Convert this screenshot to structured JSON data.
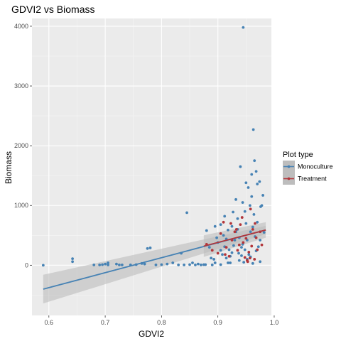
{
  "chart_data": {
    "type": "scatter",
    "title": "GDVI2 vs Biomass",
    "xlabel": "GDVI2",
    "ylabel": "Biomass",
    "xlim": [
      0.57,
      0.995
    ],
    "ylim": [
      -840,
      4130
    ],
    "x_ticks": [
      0.6,
      0.7,
      0.8,
      0.9,
      1.0
    ],
    "x_tick_labels": [
      "0.6",
      "0.7",
      "0.8",
      "0.9",
      "1.0"
    ],
    "y_ticks": [
      0,
      1000,
      2000,
      3000,
      4000
    ],
    "y_tick_labels": [
      "0",
      "1000",
      "2000",
      "3000",
      "4000"
    ],
    "grid": true,
    "background": "#ebebeb",
    "legend": {
      "title": "Plot type",
      "position": "right",
      "entries": [
        "Monoculture",
        "Treatment"
      ]
    },
    "series": [
      {
        "name": "Monoculture",
        "color": "#4682b4",
        "points": [
          [
            0.59,
            0
          ],
          [
            0.642,
            110
          ],
          [
            0.642,
            60
          ],
          [
            0.68,
            5
          ],
          [
            0.69,
            5
          ],
          [
            0.695,
            10
          ],
          [
            0.7,
            20
          ],
          [
            0.705,
            40
          ],
          [
            0.705,
            5
          ],
          [
            0.72,
            20
          ],
          [
            0.725,
            5
          ],
          [
            0.73,
            5
          ],
          [
            0.745,
            5
          ],
          [
            0.755,
            10
          ],
          [
            0.765,
            30
          ],
          [
            0.77,
            20
          ],
          [
            0.775,
            280
          ],
          [
            0.78,
            290
          ],
          [
            0.79,
            5
          ],
          [
            0.8,
            10
          ],
          [
            0.81,
            20
          ],
          [
            0.82,
            40
          ],
          [
            0.83,
            5
          ],
          [
            0.835,
            200
          ],
          [
            0.84,
            5
          ],
          [
            0.845,
            880
          ],
          [
            0.85,
            10
          ],
          [
            0.855,
            40
          ],
          [
            0.86,
            5
          ],
          [
            0.865,
            20
          ],
          [
            0.87,
            5
          ],
          [
            0.875,
            10
          ],
          [
            0.878,
            10
          ],
          [
            0.88,
            580
          ],
          [
            0.885,
            300
          ],
          [
            0.89,
            5
          ],
          [
            0.893,
            100
          ],
          [
            0.895,
            40
          ],
          [
            0.9,
            380
          ],
          [
            0.905,
            10
          ],
          [
            0.905,
            250
          ],
          [
            0.91,
            500
          ],
          [
            0.912,
            820
          ],
          [
            0.915,
            440
          ],
          [
            0.918,
            40
          ],
          [
            0.92,
            260
          ],
          [
            0.922,
            150
          ],
          [
            0.925,
            650
          ],
          [
            0.927,
            890
          ],
          [
            0.93,
            420
          ],
          [
            0.932,
            1100
          ],
          [
            0.935,
            600
          ],
          [
            0.937,
            200
          ],
          [
            0.938,
            80
          ],
          [
            0.94,
            1650
          ],
          [
            0.942,
            300
          ],
          [
            0.944,
            350
          ],
          [
            0.945,
            3980
          ],
          [
            0.946,
            50
          ],
          [
            0.948,
            900
          ],
          [
            0.95,
            700
          ],
          [
            0.952,
            420
          ],
          [
            0.954,
            1300
          ],
          [
            0.955,
            180
          ],
          [
            0.957,
            1000
          ],
          [
            0.958,
            560
          ],
          [
            0.96,
            1150
          ],
          [
            0.962,
            30
          ],
          [
            0.963,
            2270
          ],
          [
            0.964,
            850
          ],
          [
            0.966,
            480
          ],
          [
            0.968,
            1570
          ],
          [
            0.97,
            720
          ],
          [
            0.972,
            310
          ],
          [
            0.974,
            1400
          ],
          [
            0.975,
            60
          ],
          [
            0.976,
            980
          ],
          [
            0.978,
            1000
          ],
          [
            0.98,
            1170
          ],
          [
            0.982,
            550
          ],
          [
            0.95,
            1380
          ],
          [
            0.96,
            1520
          ],
          [
            0.965,
            1750
          ],
          [
            0.97,
            1360
          ],
          [
            0.944,
            1050
          ],
          [
            0.935,
            780
          ],
          [
            0.925,
            210
          ],
          [
            0.915,
            120
          ],
          [
            0.905,
            680
          ],
          [
            0.895,
            650
          ],
          [
            0.968,
            240
          ],
          [
            0.958,
            140
          ],
          [
            0.948,
            260
          ],
          [
            0.938,
            460
          ],
          [
            0.928,
            330
          ],
          [
            0.918,
            590
          ],
          [
            0.908,
            180
          ],
          [
            0.898,
            460
          ],
          [
            0.888,
            120
          ],
          [
            0.975,
            420
          ],
          [
            0.962,
            640
          ],
          [
            0.952,
            100
          ],
          [
            0.942,
            160
          ],
          [
            0.932,
            560
          ],
          [
            0.922,
            40
          ],
          [
            0.912,
            310
          ]
        ]
      },
      {
        "name": "Treatment",
        "color": "#b2353a",
        "points": [
          [
            0.88,
            350
          ],
          [
            0.89,
            250
          ],
          [
            0.9,
            200
          ],
          [
            0.905,
            530
          ],
          [
            0.91,
            720
          ],
          [
            0.915,
            300
          ],
          [
            0.92,
            150
          ],
          [
            0.925,
            420
          ],
          [
            0.93,
            560
          ],
          [
            0.935,
            250
          ],
          [
            0.94,
            680
          ],
          [
            0.945,
            380
          ],
          [
            0.948,
            130
          ],
          [
            0.95,
            450
          ],
          [
            0.952,
            80
          ],
          [
            0.955,
            220
          ],
          [
            0.958,
            940
          ],
          [
            0.96,
            320
          ],
          [
            0.962,
            600
          ],
          [
            0.965,
            100
          ],
          [
            0.968,
            460
          ],
          [
            0.97,
            260
          ],
          [
            0.975,
            560
          ],
          [
            0.978,
            340
          ],
          [
            0.957,
            120
          ],
          [
            0.943,
            800
          ],
          [
            0.933,
            600
          ],
          [
            0.923,
            700
          ],
          [
            0.913,
            180
          ],
          [
            0.938,
            340
          ],
          [
            0.966,
            700
          ],
          [
            0.953,
            60
          ]
        ]
      }
    ],
    "trend_lines": [
      {
        "name": "Monoculture",
        "color": "#4682b4",
        "x": [
          0.59,
          0.985
        ],
        "y": [
          -400,
          590
        ],
        "ci_lower": [
          -640,
          520
        ],
        "ci_upper": [
          -160,
          660
        ]
      },
      {
        "name": "Treatment",
        "color": "#b2353a",
        "x": [
          0.875,
          0.985
        ],
        "y": [
          320,
          590
        ],
        "ci_lower": [
          140,
          460
        ],
        "ci_upper": [
          500,
          720
        ]
      }
    ]
  }
}
